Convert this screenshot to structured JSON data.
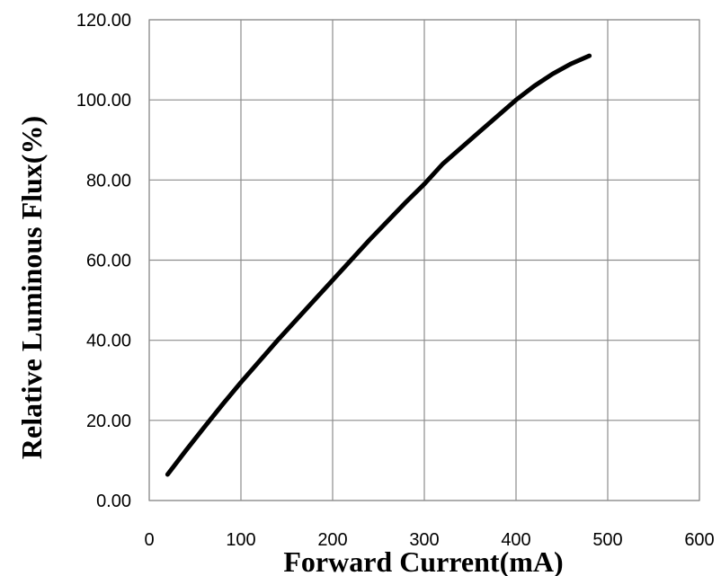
{
  "chart_data": {
    "type": "line",
    "title": "",
    "xlabel": "Forward Current(mA)",
    "ylabel": "Relative Luminous Flux(%)",
    "xlim": [
      0,
      600
    ],
    "ylim": [
      0,
      120
    ],
    "x_ticks": [
      "0",
      "100",
      "200",
      "300",
      "400",
      "500",
      "600"
    ],
    "y_ticks": [
      "0.00",
      "20.00",
      "40.00",
      "60.00",
      "80.00",
      "100.00",
      "120.00"
    ],
    "grid": true,
    "legend": "none",
    "series": [
      {
        "color": "#000000",
        "x": [
          20,
          40,
          60,
          80,
          100,
          140,
          180,
          200,
          240,
          280,
          300,
          320,
          360,
          400,
          420,
          440,
          460,
          480
        ],
        "y": [
          6.5,
          12.5,
          18.3,
          24.0,
          29.5,
          40.0,
          50.0,
          55.0,
          65.0,
          74.5,
          79.0,
          84.0,
          92.0,
          100.0,
          103.5,
          106.5,
          109.0,
          111.0
        ]
      }
    ]
  }
}
